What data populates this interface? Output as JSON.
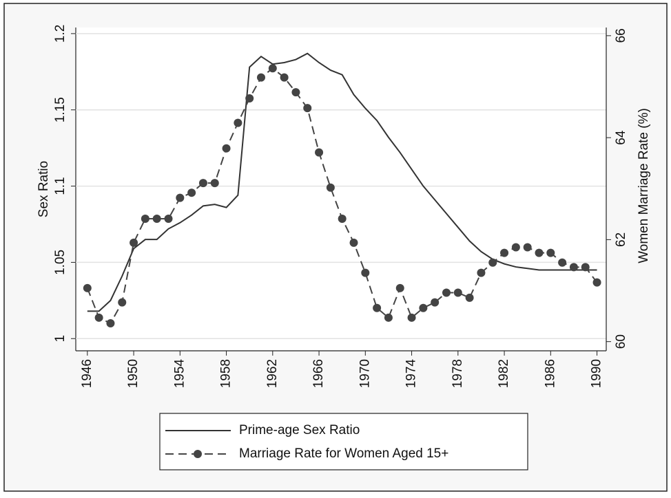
{
  "chart_data": {
    "type": "line",
    "x": [
      1946,
      1947,
      1948,
      1949,
      1950,
      1951,
      1952,
      1953,
      1954,
      1955,
      1956,
      1957,
      1958,
      1959,
      1960,
      1961,
      1962,
      1963,
      1964,
      1965,
      1966,
      1967,
      1968,
      1969,
      1970,
      1971,
      1972,
      1973,
      1974,
      1975,
      1976,
      1977,
      1978,
      1979,
      1980,
      1981,
      1982,
      1983,
      1984,
      1985,
      1986,
      1987,
      1988,
      1989,
      1990
    ],
    "xlim": [
      1945,
      1990.8
    ],
    "xticks": [
      1946,
      1950,
      1954,
      1958,
      1962,
      1966,
      1970,
      1974,
      1978,
      1982,
      1986,
      1990
    ],
    "ylabel": "Sex Ratio",
    "y2label": "Women Marriage Rate (%)",
    "ylim": [
      0.992,
      1.204
    ],
    "yticks": [
      1,
      1.05,
      1.1,
      1.15,
      1.2
    ],
    "y2lim": [
      59.82,
      66.16
    ],
    "y2ticks": [
      60,
      62,
      64,
      66
    ],
    "grid": true,
    "legend": "bottom",
    "series": [
      {
        "name": "Prime-age Sex Ratio",
        "color": "#333333",
        "line_style": "solid",
        "values": [
          1.018,
          1.018,
          1.025,
          1.041,
          1.059,
          1.065,
          1.065,
          1.072,
          1.076,
          1.081,
          1.087,
          1.088,
          1.086,
          1.094,
          1.178,
          1.185,
          1.18,
          1.181,
          1.183,
          1.187,
          1.181,
          1.176,
          1.173,
          1.16,
          1.151,
          1.143,
          1.132,
          1.122,
          1.111,
          1.1,
          1.091,
          1.082,
          1.073,
          1.064,
          1.057,
          1.052,
          1.049,
          1.047,
          1.046,
          1.045,
          1.045,
          1.045,
          1.045,
          1.045,
          1.045
        ]
      },
      {
        "name": "Marriage Rate for Women Aged 15+",
        "color": "#444444",
        "line_style": "dashed",
        "marker": "circle",
        "axis": "y2",
        "values": [
          61.05,
          60.47,
          60.36,
          60.77,
          61.94,
          62.41,
          62.41,
          62.41,
          62.82,
          62.92,
          63.11,
          63.11,
          63.79,
          64.29,
          64.77,
          65.18,
          65.36,
          65.18,
          64.89,
          64.58,
          63.71,
          63.02,
          62.41,
          61.94,
          61.35,
          60.66,
          60.47,
          61.05,
          60.47,
          60.66,
          60.77,
          60.96,
          60.96,
          60.86,
          61.35,
          61.55,
          61.74,
          61.85,
          61.85,
          61.74,
          61.74,
          61.55,
          61.46,
          61.46,
          61.16
        ]
      }
    ]
  }
}
